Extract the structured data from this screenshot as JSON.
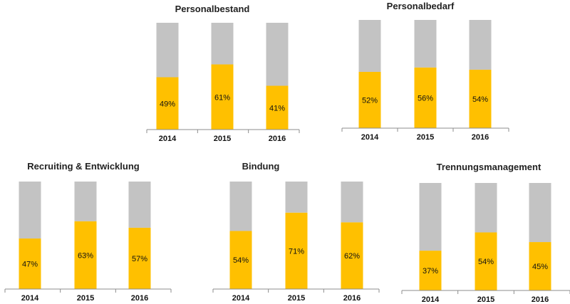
{
  "chart_data": [
    {
      "type": "bar",
      "stacked": true,
      "title": "Personalbestand",
      "categories": [
        "2014",
        "2015",
        "2016"
      ],
      "values": [
        49,
        61,
        41
      ],
      "data_labels": [
        "49%",
        "61%",
        "41%"
      ],
      "ylim": [
        0,
        100
      ],
      "colors": {
        "value": "#FFC000",
        "remainder": "#C3C3C3"
      }
    },
    {
      "type": "bar",
      "stacked": true,
      "title": "Personalbedarf",
      "categories": [
        "2014",
        "2015",
        "2016"
      ],
      "values": [
        52,
        56,
        54
      ],
      "data_labels": [
        "52%",
        "56%",
        "54%"
      ],
      "ylim": [
        0,
        100
      ],
      "colors": {
        "value": "#FFC000",
        "remainder": "#C3C3C3"
      }
    },
    {
      "type": "bar",
      "stacked": true,
      "title": "Recruiting & Entwicklung",
      "categories": [
        "2014",
        "2015",
        "2016"
      ],
      "values": [
        47,
        63,
        57
      ],
      "data_labels": [
        "47%",
        "63%",
        "57%"
      ],
      "ylim": [
        0,
        100
      ],
      "colors": {
        "value": "#FFC000",
        "remainder": "#C3C3C3"
      }
    },
    {
      "type": "bar",
      "stacked": true,
      "title": "Bindung",
      "categories": [
        "2014",
        "2015",
        "2016"
      ],
      "values": [
        54,
        71,
        62
      ],
      "data_labels": [
        "54%",
        "71%",
        "62%"
      ],
      "ylim": [
        0,
        100
      ],
      "colors": {
        "value": "#FFC000",
        "remainder": "#C3C3C3"
      }
    },
    {
      "type": "bar",
      "stacked": true,
      "title": "Trennungsmanagement",
      "categories": [
        "2014",
        "2015",
        "2016"
      ],
      "values": [
        37,
        54,
        45
      ],
      "data_labels": [
        "37%",
        "54%",
        "45%"
      ],
      "ylim": [
        0,
        100
      ],
      "colors": {
        "value": "#FFC000",
        "remainder": "#C3C3C3"
      }
    }
  ]
}
